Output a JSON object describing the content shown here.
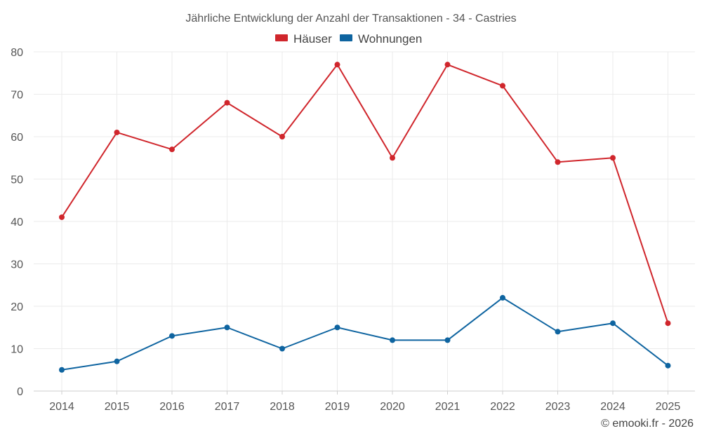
{
  "chart_data": {
    "type": "line",
    "title": "Jährliche Entwicklung der Anzahl der Transaktionen - 34 - Castries",
    "categories": [
      "2014",
      "2015",
      "2016",
      "2017",
      "2018",
      "2019",
      "2020",
      "2021",
      "2022",
      "2023",
      "2024",
      "2025"
    ],
    "series": [
      {
        "name": "Häuser",
        "color": "#d0262c",
        "values": [
          41,
          61,
          57,
          68,
          60,
          77,
          55,
          77,
          72,
          54,
          55,
          16
        ]
      },
      {
        "name": "Wohnungen",
        "color": "#0e64a0",
        "values": [
          5,
          7,
          13,
          15,
          10,
          15,
          12,
          12,
          22,
          14,
          16,
          6
        ]
      }
    ],
    "ylim": [
      0,
      80
    ],
    "yticks": [
      0,
      10,
      20,
      30,
      40,
      50,
      60,
      70,
      80
    ],
    "xlabel": "",
    "ylabel": "",
    "legend_position": "top-center",
    "grid": true
  },
  "footer": {
    "copyright": "© emooki.fr - 2026"
  }
}
